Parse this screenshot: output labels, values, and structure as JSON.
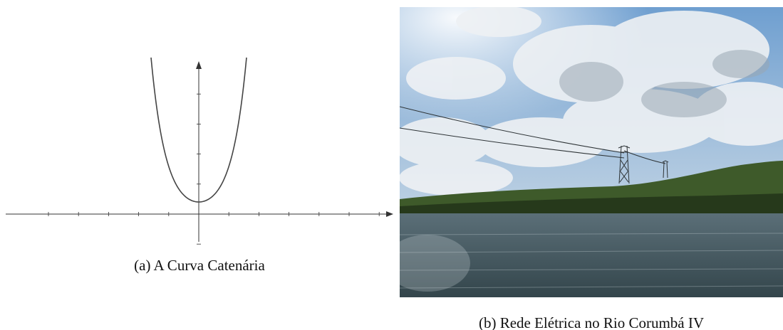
{
  "subfigures": [
    {
      "caption": "(a) A Curva Catenária"
    },
    {
      "caption": "(b) Rede Elétrica no Rio Corumbá IV"
    }
  ]
}
